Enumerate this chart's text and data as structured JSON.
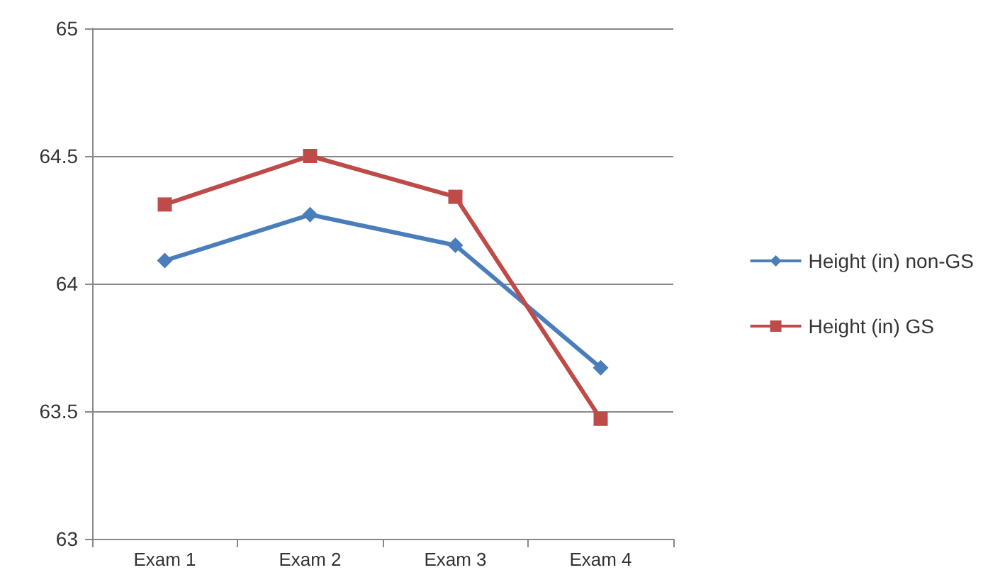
{
  "chart_data": {
    "type": "line",
    "categories": [
      "Exam 1",
      "Exam 2",
      "Exam 3",
      "Exam 4"
    ],
    "series": [
      {
        "name": "Height (in) non-GS",
        "color": "#4a7ebb",
        "marker": "diamond",
        "values": [
          64.09,
          64.27,
          64.15,
          63.67
        ]
      },
      {
        "name": "Height (in) GS",
        "color": "#be4b48",
        "marker": "square",
        "values": [
          64.31,
          64.5,
          64.34,
          63.47
        ]
      }
    ],
    "ylim": [
      63,
      65
    ],
    "yticks": [
      63,
      63.5,
      64,
      64.5,
      65
    ],
    "grid": "y",
    "legend": "right"
  }
}
